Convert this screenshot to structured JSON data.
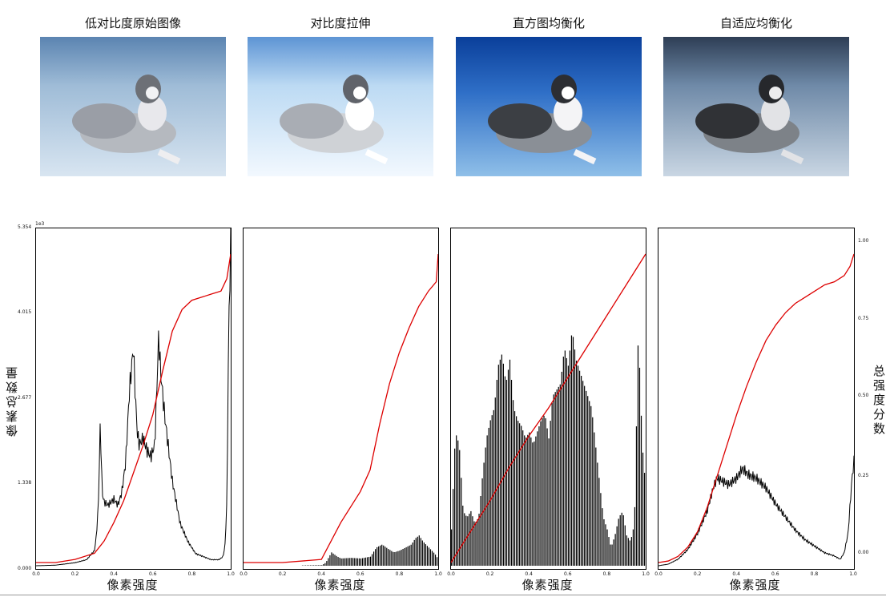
{
  "titles": [
    "低对比度原始图像",
    "对比度拉伸",
    "直方图均衡化",
    "自适应均衡化"
  ],
  "colors": {
    "cdf": "#dd0000",
    "hist": "#000000"
  },
  "axis": {
    "xlabel": "像素强度",
    "ylabel_left": "像素总数量",
    "ylabel_right": "总强度分数",
    "multiplier": "1e3",
    "y_ticks_left": [
      "5.354",
      "4.015",
      "2.677",
      "1.338",
      "0.000"
    ],
    "y_ticks_right": [
      "1.00",
      "0.75",
      "0.50",
      "0.25",
      "0.00"
    ],
    "x_ticks": [
      "0.0",
      "0.2",
      "0.4",
      "0.6",
      "0.8",
      "1.0"
    ]
  },
  "chart_data": [
    {
      "type": "line",
      "panel": "低对比度原始图像",
      "xlim": [
        0,
        1
      ],
      "ylim": [
        0,
        5.354
      ],
      "histogram_style": "step",
      "histogram": {
        "x": [
          0.0,
          0.1,
          0.2,
          0.26,
          0.3,
          0.31,
          0.32,
          0.33,
          0.34,
          0.35,
          0.37,
          0.4,
          0.42,
          0.44,
          0.46,
          0.48,
          0.5,
          0.51,
          0.52,
          0.53,
          0.55,
          0.57,
          0.59,
          0.61,
          0.63,
          0.64,
          0.66,
          0.7,
          0.74,
          0.78,
          0.82,
          0.86,
          0.9,
          0.94,
          0.96,
          0.97,
          0.98,
          0.99,
          1.0
        ],
        "y": [
          0.0,
          0.01,
          0.05,
          0.1,
          0.25,
          0.5,
          1.0,
          2.35,
          1.2,
          1.05,
          1.0,
          1.1,
          1.0,
          1.2,
          1.7,
          2.9,
          3.6,
          2.8,
          2.2,
          2.0,
          2.1,
          1.9,
          1.8,
          2.0,
          3.8,
          3.2,
          2.5,
          1.4,
          0.7,
          0.4,
          0.2,
          0.15,
          0.1,
          0.1,
          0.15,
          0.3,
          1.0,
          4.0,
          5.3
        ]
      },
      "cdf": {
        "x": [
          0.0,
          0.1,
          0.2,
          0.3,
          0.35,
          0.4,
          0.45,
          0.5,
          0.55,
          0.6,
          0.65,
          0.7,
          0.75,
          0.8,
          0.85,
          0.9,
          0.95,
          0.98,
          1.0
        ],
        "y": [
          0.0,
          0.0,
          0.01,
          0.03,
          0.07,
          0.13,
          0.2,
          0.29,
          0.38,
          0.48,
          0.62,
          0.75,
          0.82,
          0.85,
          0.86,
          0.87,
          0.88,
          0.92,
          1.0
        ]
      }
    },
    {
      "type": "line",
      "panel": "对比度拉伸",
      "xlim": [
        0,
        1
      ],
      "ylim": [
        0,
        5.354
      ],
      "histogram_style": "bars",
      "histogram": {
        "x": [
          0.0,
          0.2,
          0.4,
          0.42,
          0.45,
          0.48,
          0.5,
          0.55,
          0.6,
          0.65,
          0.68,
          0.71,
          0.74,
          0.77,
          0.8,
          0.83,
          0.86,
          0.88,
          0.9,
          0.92,
          0.95,
          0.98,
          1.0
        ],
        "y": [
          0.0,
          0.0,
          0.01,
          0.05,
          0.22,
          0.15,
          0.12,
          0.13,
          0.12,
          0.15,
          0.3,
          0.35,
          0.28,
          0.22,
          0.25,
          0.3,
          0.35,
          0.45,
          0.5,
          0.4,
          0.3,
          0.2,
          0.1
        ]
      },
      "cdf": {
        "x": [
          0.0,
          0.2,
          0.4,
          0.45,
          0.5,
          0.55,
          0.6,
          0.65,
          0.7,
          0.75,
          0.8,
          0.85,
          0.9,
          0.95,
          0.99,
          1.0
        ],
        "y": [
          0.0,
          0.0,
          0.01,
          0.07,
          0.13,
          0.18,
          0.23,
          0.3,
          0.45,
          0.58,
          0.68,
          0.76,
          0.83,
          0.88,
          0.91,
          1.0
        ]
      }
    },
    {
      "type": "line",
      "panel": "直方图均衡化",
      "xlim": [
        0,
        1
      ],
      "ylim": [
        0,
        5.354
      ],
      "histogram_style": "bars",
      "histogram": {
        "x": [
          0.0,
          0.02,
          0.04,
          0.06,
          0.08,
          0.1,
          0.12,
          0.14,
          0.16,
          0.18,
          0.2,
          0.22,
          0.24,
          0.26,
          0.28,
          0.3,
          0.32,
          0.34,
          0.36,
          0.38,
          0.4,
          0.42,
          0.44,
          0.46,
          0.48,
          0.5,
          0.52,
          0.54,
          0.56,
          0.58,
          0.6,
          0.62,
          0.64,
          0.66,
          0.68,
          0.7,
          0.72,
          0.74,
          0.76,
          0.78,
          0.8,
          0.82,
          0.84,
          0.86,
          0.88,
          0.9,
          0.92,
          0.94,
          0.96,
          0.98,
          1.0
        ],
        "y": [
          0.6,
          2.2,
          2.0,
          0.9,
          0.8,
          0.9,
          0.7,
          0.8,
          1.5,
          2.1,
          2.4,
          2.6,
          3.3,
          3.5,
          3.0,
          3.4,
          2.6,
          2.4,
          2.3,
          2.1,
          2.2,
          2.0,
          2.2,
          2.4,
          2.5,
          2.1,
          2.8,
          2.9,
          3.0,
          3.6,
          3.3,
          3.9,
          3.4,
          3.2,
          3.0,
          2.8,
          2.6,
          2.0,
          1.4,
          0.8,
          0.6,
          0.3,
          0.5,
          0.8,
          0.9,
          0.5,
          0.4,
          0.7,
          3.9,
          2.0,
          1.2
        ]
      },
      "cdf": {
        "x": [
          0.0,
          0.1,
          0.2,
          0.3,
          0.4,
          0.5,
          0.6,
          0.7,
          0.8,
          0.9,
          1.0
        ],
        "y": [
          0.0,
          0.1,
          0.2,
          0.31,
          0.41,
          0.5,
          0.6,
          0.7,
          0.8,
          0.9,
          1.0
        ]
      }
    },
    {
      "type": "line",
      "panel": "自适应均衡化",
      "xlim": [
        0,
        1
      ],
      "ylim": [
        0,
        1
      ],
      "histogram_style": "step",
      "histogram": {
        "x": [
          0.0,
          0.05,
          0.1,
          0.15,
          0.2,
          0.25,
          0.28,
          0.3,
          0.33,
          0.36,
          0.4,
          0.43,
          0.46,
          0.5,
          0.55,
          0.6,
          0.65,
          0.7,
          0.75,
          0.8,
          0.85,
          0.9,
          0.93,
          0.95,
          0.97,
          0.99,
          1.0
        ],
        "y": [
          0.0,
          0.005,
          0.02,
          0.05,
          0.1,
          0.17,
          0.24,
          0.27,
          0.26,
          0.25,
          0.27,
          0.3,
          0.28,
          0.27,
          0.24,
          0.19,
          0.15,
          0.11,
          0.08,
          0.06,
          0.04,
          0.03,
          0.02,
          0.04,
          0.1,
          0.27,
          0.32
        ]
      },
      "cdf": {
        "x": [
          0.0,
          0.05,
          0.1,
          0.15,
          0.2,
          0.25,
          0.3,
          0.35,
          0.4,
          0.45,
          0.5,
          0.55,
          0.6,
          0.65,
          0.7,
          0.75,
          0.8,
          0.85,
          0.9,
          0.95,
          0.98,
          1.0
        ],
        "y": [
          0.0,
          0.005,
          0.02,
          0.05,
          0.1,
          0.18,
          0.28,
          0.38,
          0.48,
          0.57,
          0.65,
          0.72,
          0.77,
          0.81,
          0.84,
          0.86,
          0.88,
          0.9,
          0.91,
          0.93,
          0.96,
          1.0
        ]
      }
    }
  ]
}
